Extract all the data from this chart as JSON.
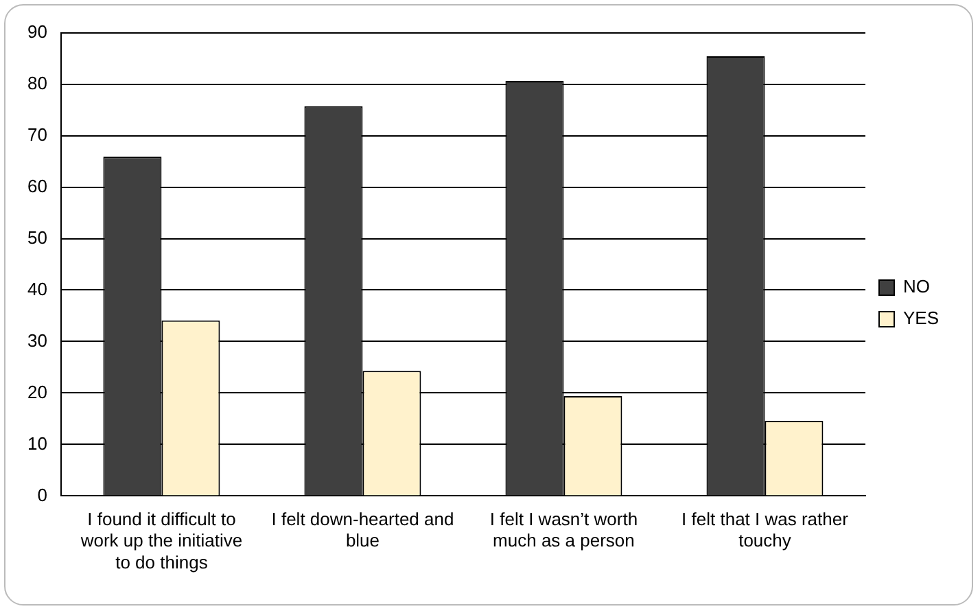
{
  "chart_data": {
    "type": "bar",
    "categories": [
      "I found it difficult to work up the initiative to do things",
      "I felt down-hearted and blue",
      "I felt I wasn’t worth much as a person",
      "I felt that I was rather touchy"
    ],
    "series": [
      {
        "name": "NO",
        "color": "#404040",
        "values": [
          65.9,
          75.7,
          80.6,
          85.4
        ]
      },
      {
        "name": "YES",
        "color": "#fff2cc",
        "values": [
          34.1,
          24.3,
          19.4,
          14.6
        ]
      }
    ],
    "ylim": [
      0,
      90
    ],
    "yticks": [
      0,
      10,
      20,
      30,
      40,
      50,
      60,
      70,
      80,
      90
    ],
    "grid": "y",
    "legend": "right"
  }
}
